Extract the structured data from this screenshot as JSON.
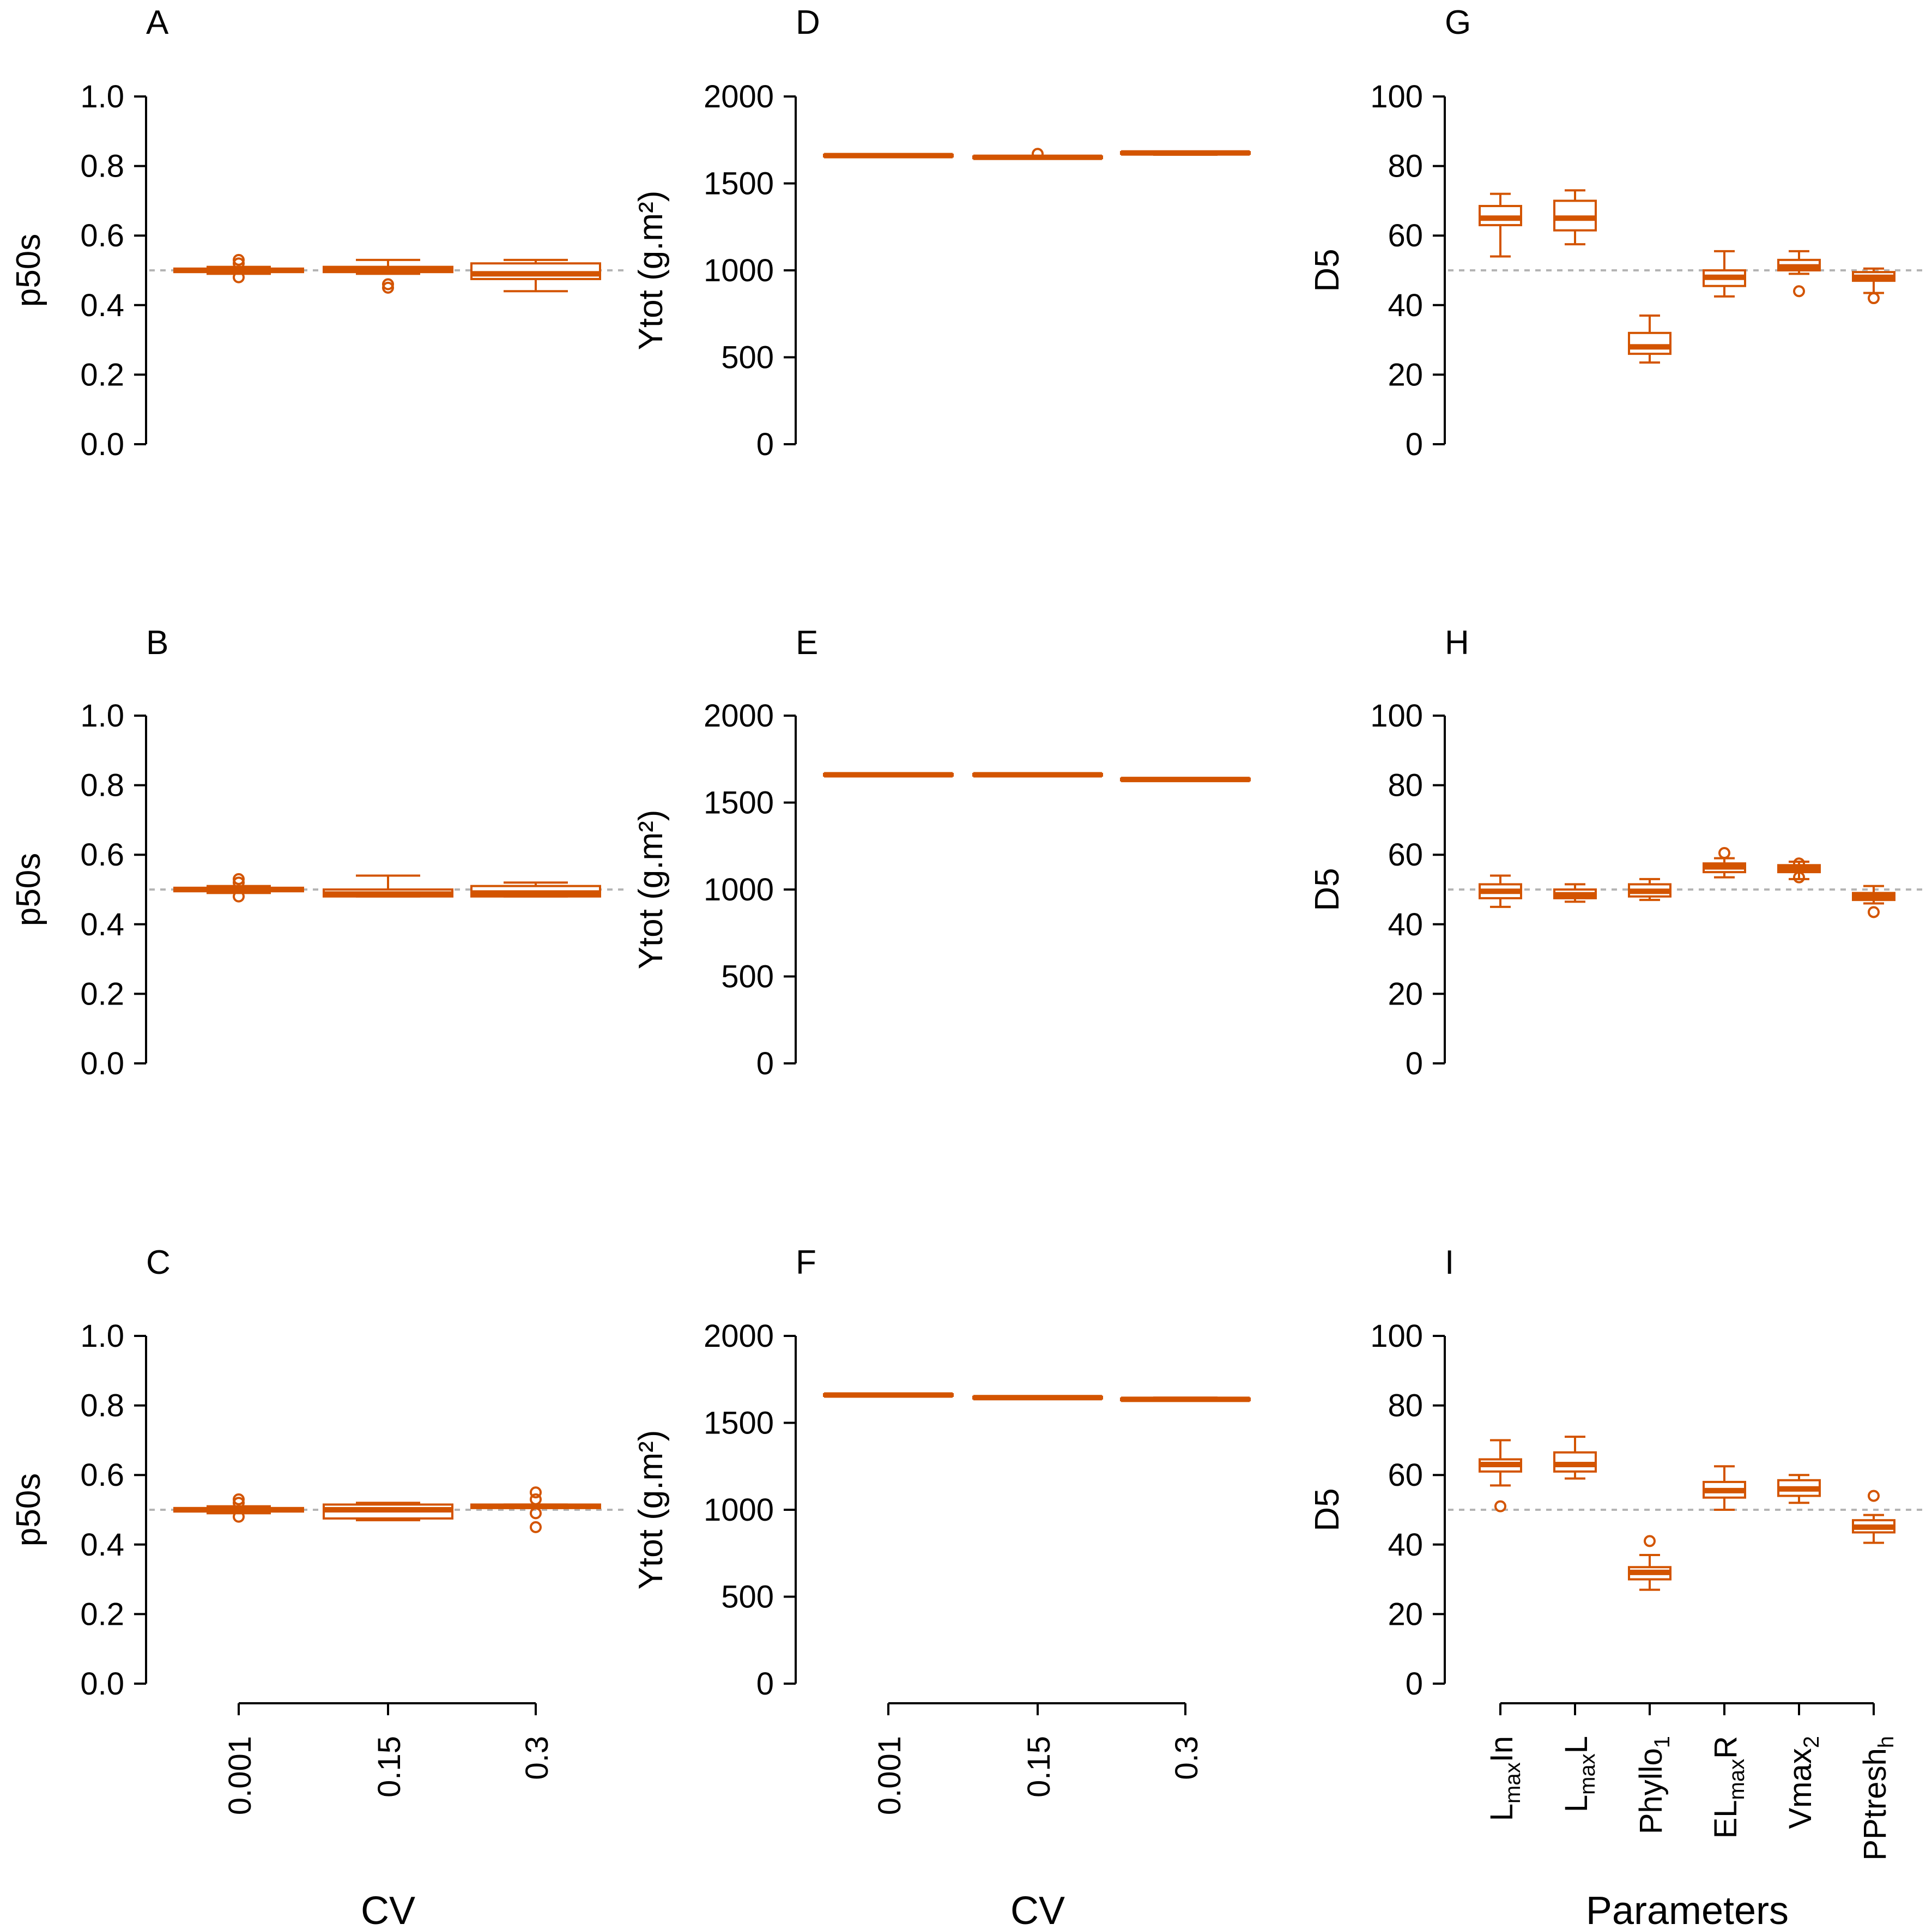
{
  "colors": {
    "box": "#d35400",
    "reference_line": "#b4b4b4",
    "axis": "#000000"
  },
  "chart_data": [
    {
      "id": "A",
      "panel_label": "A",
      "type": "box",
      "ylabel": "p50s",
      "xlabel": "CV",
      "ylim": [
        0,
        1
      ],
      "yticks": [
        0,
        0.2,
        0.4,
        0.6,
        0.8,
        1
      ],
      "ytick_labels": [
        "0.0",
        "0.2",
        "0.4",
        "0.6",
        "0.8",
        "1.0"
      ],
      "reference_line": 0.5,
      "categories": [
        "0.001",
        "0.15",
        "0.3"
      ],
      "boxes": [
        {
          "q1": 0.495,
          "median": 0.5,
          "q3": 0.505,
          "lo": 0.49,
          "hi": 0.51,
          "outliers": [
            0.52,
            0.53,
            0.48
          ]
        },
        {
          "q1": 0.495,
          "median": 0.5,
          "q3": 0.51,
          "lo": 0.49,
          "hi": 0.53,
          "outliers": [
            0.46,
            0.45
          ]
        },
        {
          "q1": 0.475,
          "median": 0.49,
          "q3": 0.52,
          "lo": 0.44,
          "hi": 0.53,
          "outliers": []
        }
      ]
    },
    {
      "id": "B",
      "panel_label": "B",
      "type": "box",
      "ylabel": "p50s",
      "xlabel": "CV",
      "ylim": [
        0,
        1
      ],
      "yticks": [
        0,
        0.2,
        0.4,
        0.6,
        0.8,
        1
      ],
      "ytick_labels": [
        "0.0",
        "0.2",
        "0.4",
        "0.6",
        "0.8",
        "1.0"
      ],
      "reference_line": 0.5,
      "categories": [
        "0.001",
        "0.15",
        "0.3"
      ],
      "boxes": [
        {
          "q1": 0.495,
          "median": 0.5,
          "q3": 0.505,
          "lo": 0.49,
          "hi": 0.51,
          "outliers": [
            0.52,
            0.53,
            0.48
          ]
        },
        {
          "q1": 0.48,
          "median": 0.487,
          "q3": 0.5,
          "lo": 0.48,
          "hi": 0.54,
          "outliers": []
        },
        {
          "q1": 0.48,
          "median": 0.49,
          "q3": 0.51,
          "lo": 0.48,
          "hi": 0.52,
          "outliers": []
        }
      ]
    },
    {
      "id": "C",
      "panel_label": "C",
      "type": "box",
      "ylabel": "p50s",
      "xlabel": "CV",
      "ylim": [
        0,
        1
      ],
      "yticks": [
        0,
        0.2,
        0.4,
        0.6,
        0.8,
        1
      ],
      "ytick_labels": [
        "0.0",
        "0.2",
        "0.4",
        "0.6",
        "0.8",
        "1.0"
      ],
      "reference_line": 0.5,
      "categories": [
        "0.001",
        "0.15",
        "0.3"
      ],
      "boxes": [
        {
          "q1": 0.495,
          "median": 0.5,
          "q3": 0.505,
          "lo": 0.49,
          "hi": 0.51,
          "outliers": [
            0.52,
            0.53,
            0.48
          ]
        },
        {
          "q1": 0.475,
          "median": 0.5,
          "q3": 0.515,
          "lo": 0.47,
          "hi": 0.52,
          "outliers": []
        },
        {
          "q1": 0.505,
          "median": 0.51,
          "q3": 0.515,
          "lo": 0.505,
          "hi": 0.515,
          "outliers": [
            0.55,
            0.53,
            0.49,
            0.45
          ]
        }
      ]
    },
    {
      "id": "D",
      "panel_label": "D",
      "type": "box",
      "ylabel": "Ytot (g.m²)",
      "xlabel": "CV",
      "ylim": [
        0,
        2000
      ],
      "yticks": [
        0,
        500,
        1000,
        1500,
        2000
      ],
      "ytick_labels": [
        "0",
        "500",
        "1000",
        "1500",
        "2000"
      ],
      "reference_line": null,
      "categories": [
        "0.001",
        "0.15",
        "0.3"
      ],
      "boxes": [
        {
          "q1": 1655,
          "median": 1660,
          "q3": 1665,
          "lo": 1655,
          "hi": 1665,
          "outliers": []
        },
        {
          "q1": 1645,
          "median": 1650,
          "q3": 1655,
          "lo": 1645,
          "hi": 1655,
          "outliers": [
            1670
          ]
        },
        {
          "q1": 1670,
          "median": 1675,
          "q3": 1680,
          "lo": 1665,
          "hi": 1680,
          "outliers": []
        }
      ]
    },
    {
      "id": "E",
      "panel_label": "E",
      "type": "box",
      "ylabel": "Ytot (g.m²)",
      "xlabel": "CV",
      "ylim": [
        0,
        2000
      ],
      "yticks": [
        0,
        500,
        1000,
        1500,
        2000
      ],
      "ytick_labels": [
        "0",
        "500",
        "1000",
        "1500",
        "2000"
      ],
      "reference_line": null,
      "categories": [
        "0.001",
        "0.15",
        "0.3"
      ],
      "boxes": [
        {
          "q1": 1655,
          "median": 1660,
          "q3": 1665,
          "lo": 1655,
          "hi": 1665,
          "outliers": []
        },
        {
          "q1": 1655,
          "median": 1660,
          "q3": 1665,
          "lo": 1655,
          "hi": 1665,
          "outliers": []
        },
        {
          "q1": 1628,
          "median": 1633,
          "q3": 1638,
          "lo": 1628,
          "hi": 1638,
          "outliers": []
        }
      ]
    },
    {
      "id": "F",
      "panel_label": "F",
      "type": "box",
      "ylabel": "Ytot (g.m²)",
      "xlabel": "CV",
      "ylim": [
        0,
        2000
      ],
      "yticks": [
        0,
        500,
        1000,
        1500,
        2000
      ],
      "ytick_labels": [
        "0",
        "500",
        "1000",
        "1500",
        "2000"
      ],
      "reference_line": null,
      "categories": [
        "0.001",
        "0.15",
        "0.3"
      ],
      "boxes": [
        {
          "q1": 1655,
          "median": 1660,
          "q3": 1665,
          "lo": 1655,
          "hi": 1665,
          "outliers": []
        },
        {
          "q1": 1640,
          "median": 1645,
          "q3": 1650,
          "lo": 1640,
          "hi": 1650,
          "outliers": []
        },
        {
          "q1": 1630,
          "median": 1635,
          "q3": 1640,
          "lo": 1630,
          "hi": 1645,
          "outliers": []
        }
      ]
    },
    {
      "id": "G",
      "panel_label": "G",
      "type": "box",
      "ylabel": "D5",
      "xlabel": "Parameters",
      "ylim": [
        0,
        100
      ],
      "yticks": [
        0,
        20,
        40,
        60,
        80,
        100
      ],
      "ytick_labels": [
        "0",
        "20",
        "40",
        "60",
        "80",
        "100"
      ],
      "reference_line": 50,
      "categories": [
        "LmaxIn",
        "LmaxL",
        "Phyllo1",
        "ELmaxR",
        "Vmax2",
        "PPtreshh"
      ],
      "boxes": [
        {
          "q1": 63,
          "median": 65,
          "q3": 68.5,
          "lo": 54,
          "hi": 72,
          "outliers": []
        },
        {
          "q1": 61.5,
          "median": 65,
          "q3": 70,
          "lo": 57.5,
          "hi": 73,
          "outliers": []
        },
        {
          "q1": 26,
          "median": 28,
          "q3": 32,
          "lo": 23.5,
          "hi": 37,
          "outliers": []
        },
        {
          "q1": 45.5,
          "median": 48,
          "q3": 50,
          "lo": 42.5,
          "hi": 55.5,
          "outliers": []
        },
        {
          "q1": 50,
          "median": 51,
          "q3": 53,
          "lo": 49,
          "hi": 55.5,
          "outliers": [
            44
          ]
        },
        {
          "q1": 47,
          "median": 48,
          "q3": 49.5,
          "lo": 43.5,
          "hi": 50.5,
          "outliers": [
            42
          ]
        }
      ]
    },
    {
      "id": "H",
      "panel_label": "H",
      "type": "box",
      "ylabel": "D5",
      "xlabel": "Parameters",
      "ylim": [
        0,
        100
      ],
      "yticks": [
        0,
        20,
        40,
        60,
        80,
        100
      ],
      "ytick_labels": [
        "0",
        "20",
        "40",
        "60",
        "80",
        "100"
      ],
      "reference_line": 50,
      "categories": [
        "LmaxIn",
        "LmaxL",
        "Phyllo1",
        "ELmaxR",
        "Vmax2",
        "PPtreshh"
      ],
      "boxes": [
        {
          "q1": 47.5,
          "median": 49.5,
          "q3": 51.5,
          "lo": 45,
          "hi": 54,
          "outliers": []
        },
        {
          "q1": 47.5,
          "median": 48.5,
          "q3": 50,
          "lo": 46.5,
          "hi": 51.5,
          "outliers": []
        },
        {
          "q1": 48,
          "median": 49.5,
          "q3": 51.5,
          "lo": 47,
          "hi": 53,
          "outliers": []
        },
        {
          "q1": 55,
          "median": 56.5,
          "q3": 57.5,
          "lo": 53.5,
          "hi": 59,
          "outliers": [
            60.5
          ]
        },
        {
          "q1": 55,
          "median": 56,
          "q3": 57,
          "lo": 53,
          "hi": 58,
          "outliers": [
            57.5,
            53.5
          ]
        },
        {
          "q1": 47,
          "median": 48,
          "q3": 49,
          "lo": 46,
          "hi": 51,
          "outliers": [
            43.5
          ]
        }
      ]
    },
    {
      "id": "I",
      "panel_label": "I",
      "type": "box",
      "ylabel": "D5",
      "xlabel": "Parameters",
      "ylim": [
        0,
        100
      ],
      "yticks": [
        0,
        20,
        40,
        60,
        80,
        100
      ],
      "ytick_labels": [
        "0",
        "20",
        "40",
        "60",
        "80",
        "100"
      ],
      "reference_line": 50,
      "categories": [
        "LmaxIn",
        "LmaxL",
        "Phyllo1",
        "ELmaxR",
        "Vmax2",
        "PPtreshh"
      ],
      "boxes": [
        {
          "q1": 61,
          "median": 63,
          "q3": 64.5,
          "lo": 57,
          "hi": 70,
          "outliers": [
            51
          ]
        },
        {
          "q1": 61,
          "median": 63,
          "q3": 66.5,
          "lo": 59,
          "hi": 71,
          "outliers": []
        },
        {
          "q1": 30,
          "median": 32,
          "q3": 33.5,
          "lo": 27,
          "hi": 37,
          "outliers": [
            41
          ]
        },
        {
          "q1": 53.5,
          "median": 55.5,
          "q3": 58,
          "lo": 50,
          "hi": 62.5,
          "outliers": []
        },
        {
          "q1": 54,
          "median": 56,
          "q3": 58.5,
          "lo": 52,
          "hi": 60,
          "outliers": []
        },
        {
          "q1": 43.5,
          "median": 45,
          "q3": 47,
          "lo": 40.5,
          "hi": 48.5,
          "outliers": [
            54
          ]
        }
      ]
    }
  ],
  "x_axis_titles": {
    "col1": "CV",
    "col2": "CV",
    "col3": "Parameters"
  },
  "cv_tick_labels": [
    "0.001",
    "0.15",
    "0.3"
  ],
  "param_tick_labels": [
    {
      "main": "L",
      "sub": "max",
      "tail": "In"
    },
    {
      "main": "L",
      "sub": "max",
      "tail": "L"
    },
    {
      "main": "Phyllo",
      "sub": "1",
      "tail": ""
    },
    {
      "main": "EL",
      "sub": "max",
      "tail": "R"
    },
    {
      "main": "Vmax",
      "sub": "2",
      "tail": ""
    },
    {
      "main": "PPtresh",
      "sub": "h",
      "tail": ""
    }
  ]
}
